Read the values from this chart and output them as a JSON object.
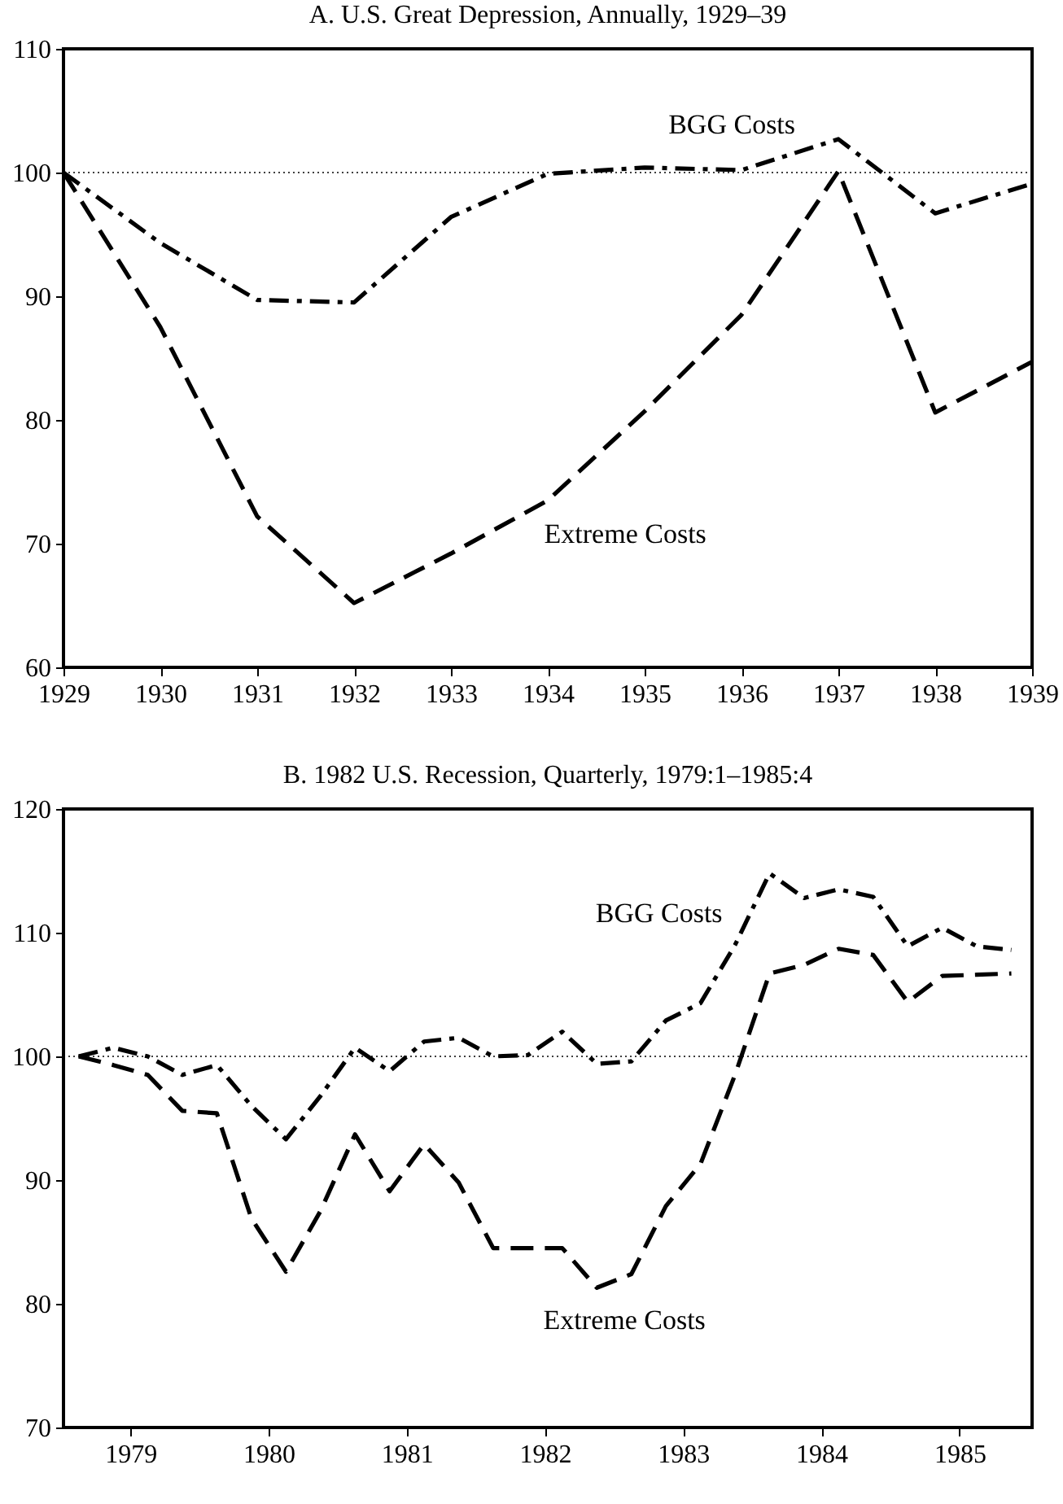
{
  "chart_data": [
    {
      "type": "line",
      "title": "A. U.S. Great Depression, Annually, 1929–39",
      "x": [
        1929,
        1930,
        1931,
        1932,
        1933,
        1934,
        1935,
        1936,
        1937,
        1938,
        1939
      ],
      "xlim": [
        1929,
        1939
      ],
      "xticks": [
        1929,
        1930,
        1931,
        1932,
        1933,
        1934,
        1935,
        1936,
        1937,
        1938,
        1939
      ],
      "ylim": [
        60,
        110
      ],
      "yticks": [
        60,
        70,
        80,
        90,
        100,
        110
      ],
      "grid": false,
      "legend": false,
      "series": [
        {
          "name": "BGG Costs",
          "color": "#000000",
          "line_style": "dashdot",
          "values": [
            100,
            94.3,
            89.7,
            89.5,
            96.4,
            99.9,
            100.4,
            100.2,
            102.7,
            96.7,
            99.1
          ]
        },
        {
          "name": "Extreme Costs",
          "color": "#000000",
          "line_style": "dashed",
          "values": [
            100,
            87.5,
            72.2,
            65.2,
            69.2,
            73.5,
            80.7,
            88.5,
            100.1,
            80.6,
            84.7
          ]
        }
      ],
      "ref_lines": [
        {
          "axis": "y",
          "value": 100,
          "line_style": "dotted"
        }
      ]
    },
    {
      "type": "line",
      "title": "B. 1982 U.S. Recession, Quarterly, 1979:1–1985:4",
      "x": [
        1979,
        1979.25,
        1979.5,
        1979.75,
        1980,
        1980.25,
        1980.5,
        1980.75,
        1981,
        1981.25,
        1981.5,
        1981.75,
        1982,
        1982.25,
        1982.5,
        1982.75,
        1983,
        1983.25,
        1983.5,
        1983.75,
        1984,
        1984.25,
        1984.5,
        1984.75,
        1985,
        1985.25,
        1985.5,
        1985.75
      ],
      "xlim": [
        1978.89,
        1985.9
      ],
      "xticks": [
        {
          "value": 1979.375,
          "label": "1979"
        },
        {
          "value": 1980.375,
          "label": "1980"
        },
        {
          "value": 1981.375,
          "label": "1981"
        },
        {
          "value": 1982.375,
          "label": "1982"
        },
        {
          "value": 1983.375,
          "label": "1983"
        },
        {
          "value": 1984.375,
          "label": "1984"
        },
        {
          "value": 1985.375,
          "label": "1985"
        }
      ],
      "ylim": [
        70,
        120
      ],
      "yticks": [
        70,
        80,
        90,
        100,
        110,
        120
      ],
      "grid": false,
      "legend": false,
      "series": [
        {
          "name": "BGG Costs",
          "color": "#000000",
          "line_style": "dashdot",
          "values": [
            100,
            100.7,
            100,
            98.5,
            99.3,
            96,
            93.3,
            96.8,
            100.7,
            98.8,
            101.2,
            101.5,
            100,
            100.1,
            102,
            99.4,
            99.6,
            102.9,
            104.3,
            109,
            114.8,
            112.8,
            113.5,
            112.9,
            108.9,
            110.4,
            108.9,
            108.6
          ]
        },
        {
          "name": "Extreme Costs",
          "color": "#000000",
          "line_style": "dashed",
          "values": [
            100,
            99.3,
            98.5,
            95.6,
            95.4,
            86.9,
            82.6,
            87.5,
            93.7,
            89.1,
            92.9,
            89.8,
            84.5,
            84.5,
            84.5,
            81.3,
            82.4,
            87.9,
            91.3,
            98.5,
            106.7,
            107.4,
            108.7,
            108.2,
            104.4,
            106.5,
            106.6,
            106.7
          ]
        }
      ],
      "ref_lines": [
        {
          "axis": "y",
          "value": 100,
          "line_style": "dotted"
        }
      ]
    }
  ]
}
